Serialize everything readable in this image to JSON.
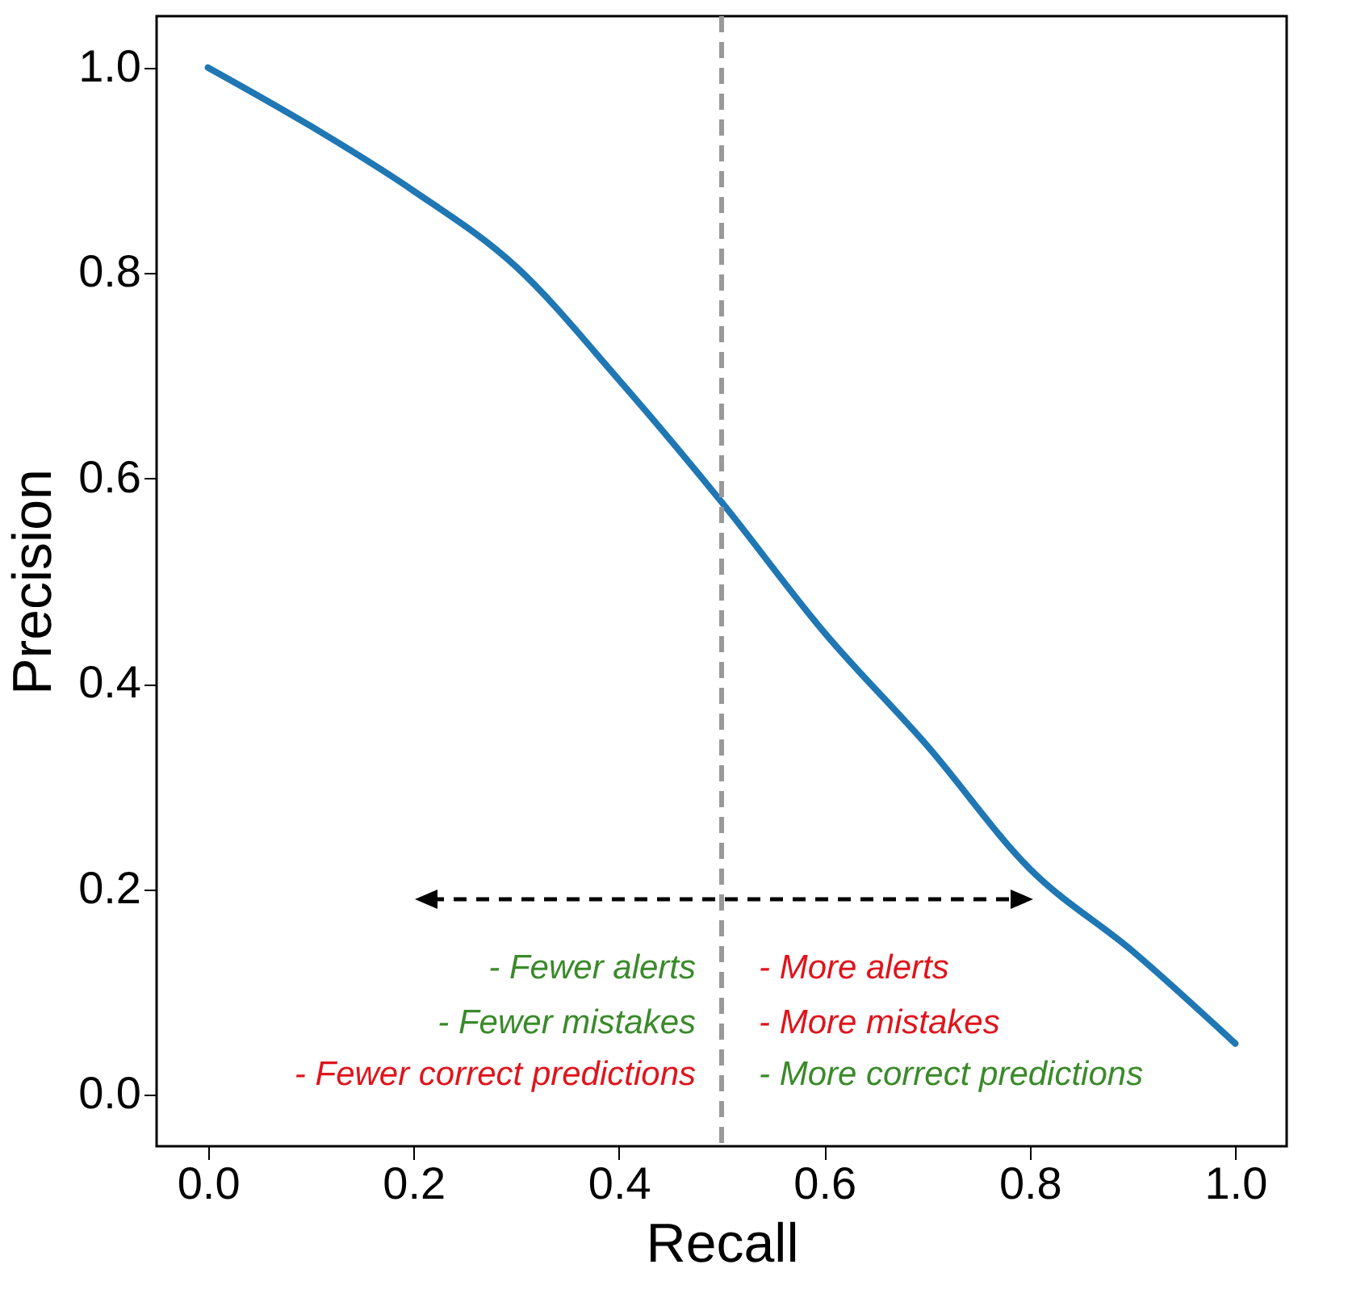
{
  "chart_data": {
    "type": "line",
    "xlabel": "Recall",
    "ylabel": "Precision",
    "x": [
      0,
      0.1,
      0.2,
      0.3,
      0.4,
      0.5,
      0.6,
      0.7,
      0.8,
      0.9,
      1.0
    ],
    "series": [
      {
        "color": "#1f77b4",
        "values": [
          1.0,
          0.943,
          0.88,
          0.806,
          0.696,
          0.577,
          0.45,
          0.34,
          0.22,
          0.14,
          0.05
        ]
      }
    ],
    "xlim": [
      -0.05,
      1.05
    ],
    "ylim": [
      -0.05,
      1.05
    ],
    "xticks": [
      {
        "value": 0,
        "label": "0.0"
      },
      {
        "value": 0.2,
        "label": "0.2"
      },
      {
        "value": 0.4,
        "label": "0.4"
      },
      {
        "value": 0.6,
        "label": "0.6"
      },
      {
        "value": 0.8,
        "label": "0.8"
      },
      {
        "value": 1,
        "label": "1.0"
      }
    ],
    "yticks": [
      {
        "value": 0,
        "label": "0.0"
      },
      {
        "value": 0.2,
        "label": "0.2"
      },
      {
        "value": 0.4,
        "label": "0.4"
      },
      {
        "value": 0.6,
        "label": "0.6"
      },
      {
        "value": 0.8,
        "label": "0.8"
      },
      {
        "value": 1,
        "label": "1.0"
      }
    ],
    "ref_lines": [
      {
        "axis": "x",
        "value": 0.5,
        "color": "#999999",
        "line_style": "dashed"
      }
    ],
    "annotations": [
      "- Fewer alerts",
      "- Fewer mistakes",
      "- Fewer correct predictions",
      "- More alerts",
      "- More mistakes",
      "- More correct predictions"
    ],
    "grid": false,
    "marker": "none",
    "line_style": "solid"
  }
}
